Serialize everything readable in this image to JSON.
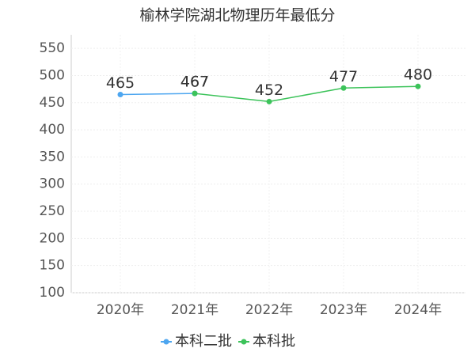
{
  "chart_data": {
    "type": "line",
    "title": "榆林学院湖北物理历年最低分",
    "categories": [
      "2020年",
      "2021年",
      "2022年",
      "2023年",
      "2024年"
    ],
    "series": [
      {
        "name": "本科二批",
        "color": "#4da6f0",
        "values": [
          465,
          467,
          null,
          null,
          null
        ]
      },
      {
        "name": "本科批",
        "color": "#3cc35a",
        "values": [
          null,
          467,
          452,
          477,
          480
        ]
      }
    ],
    "ylim": [
      100,
      575
    ],
    "yticks": [
      100,
      150,
      200,
      250,
      300,
      350,
      400,
      450,
      500,
      550
    ],
    "grid": true,
    "legend": "bottom"
  }
}
